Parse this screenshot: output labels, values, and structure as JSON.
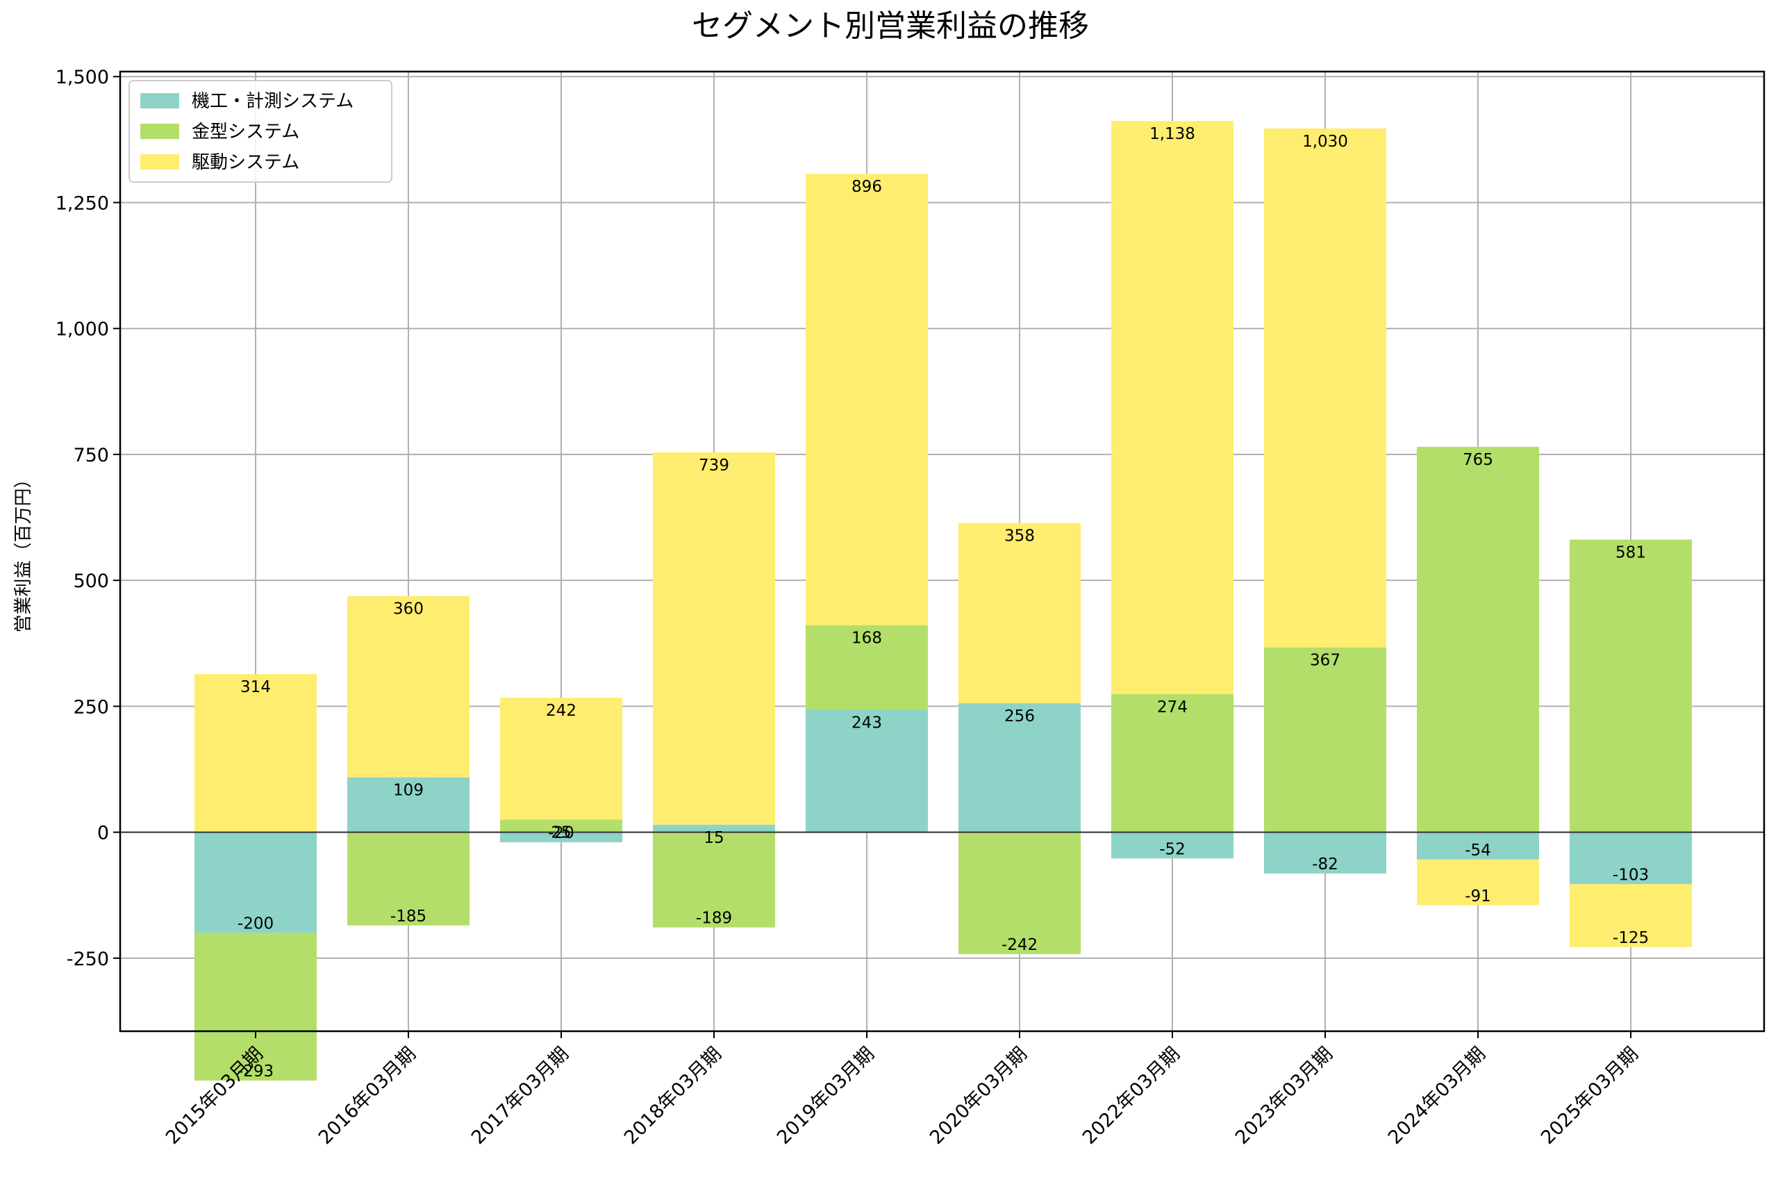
{
  "chart_data": {
    "type": "bar",
    "stacked": true,
    "title": "セグメント別営業利益の推移",
    "xlabel": "",
    "ylabel": "営業利益（百万円）",
    "ylim": [
      -395,
      1510
    ],
    "yticks": [
      -250,
      0,
      250,
      500,
      750,
      1000,
      1250,
      1500
    ],
    "ytick_labels": [
      "-250",
      "0",
      "250",
      "500",
      "750",
      "1,000",
      "1,250",
      "1,500"
    ],
    "grid": true,
    "legend_position": "top-left",
    "categories": [
      "2015年03月期",
      "2016年03月期",
      "2017年03月期",
      "2018年03月期",
      "2019年03月期",
      "2020年03月期",
      "2022年03月期",
      "2023年03月期",
      "2024年03月期",
      "2025年03月期"
    ],
    "series": [
      {
        "name": "機工・計測システム",
        "color": "#8dd3c7",
        "values": [
          -200,
          109,
          -20,
          15,
          243,
          256,
          -52,
          -82,
          -54,
          -103
        ],
        "labels": [
          "-200",
          "109",
          "-20",
          "15",
          "243",
          "256",
          "-52",
          "-82",
          "-54",
          "-103"
        ]
      },
      {
        "name": "金型システム",
        "color": "#b3de69",
        "values": [
          -293,
          -185,
          25,
          -189,
          168,
          -242,
          274,
          367,
          765,
          581
        ],
        "labels": [
          "-293",
          "-185",
          "25",
          "-189",
          "168",
          "-242",
          "274",
          "367",
          "765",
          "581"
        ]
      },
      {
        "name": "駆動システム",
        "color": "#ffed6f",
        "values": [
          314,
          360,
          242,
          739,
          896,
          358,
          1138,
          1030,
          -91,
          -125
        ],
        "labels": [
          "314",
          "360",
          "242",
          "739",
          "896",
          "358",
          "1,138",
          "1,030",
          "-91",
          "-125"
        ]
      }
    ]
  }
}
